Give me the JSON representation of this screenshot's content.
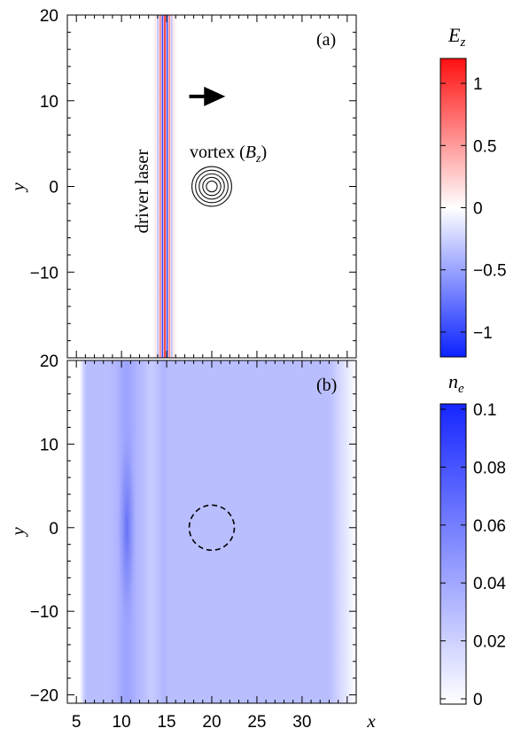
{
  "chart_data": [
    {
      "panel": "(a)",
      "type": "heatmap",
      "quantity": "E_z",
      "xlim": [
        4,
        36
      ],
      "ylim": [
        -20,
        20
      ],
      "yticks": [
        20,
        10,
        0,
        -10
      ],
      "ylabel": "y",
      "colorbar": {
        "label": "E",
        "label_sub": "z",
        "range": [
          -1.2,
          1.2
        ],
        "ticks": [
          1,
          0.5,
          0,
          -0.5,
          -1
        ],
        "tick_labels": [
          "1",
          "0.5",
          "0",
          "−0.5",
          "−1"
        ],
        "colors": [
          "#0b22ff",
          "#ffffff",
          "#ff1010"
        ]
      },
      "laser": {
        "x_center": 14.8,
        "x_half_width": 1.3,
        "carrier_period": 0.52,
        "peak": 1.2
      },
      "vortex": {
        "x": 20,
        "y": 0,
        "radii": [
          0.6,
          1.0,
          1.4,
          1.8,
          2.2
        ]
      },
      "arrow": {
        "x0": 17.5,
        "x1": 21.5,
        "y": 10.5
      },
      "annotations": {
        "panel_label": "(a)",
        "laser_label": "driver laser",
        "vortex_label_prefix": "vortex (",
        "vortex_label_var": "B",
        "vortex_label_sub": "z",
        "vortex_label_suffix": ")"
      }
    },
    {
      "panel": "(b)",
      "type": "heatmap",
      "quantity": "n_e",
      "xlim": [
        4,
        36
      ],
      "ylim": [
        -21,
        20
      ],
      "xticks": [
        5,
        10,
        15,
        20,
        25,
        30
      ],
      "yticks": [
        20,
        10,
        0,
        -10,
        -20
      ],
      "xlabel": "x",
      "ylabel": "y",
      "colorbar": {
        "label": "n",
        "label_sub": "e",
        "range": [
          0,
          0.1
        ],
        "ticks": [
          0.1,
          0.08,
          0.06,
          0.04,
          0.02,
          0
        ],
        "tick_labels": [
          "0.1",
          "0.08",
          "0.06",
          "0.04",
          "0.02",
          "0"
        ],
        "colors": [
          "#ffffff",
          "#1626ff"
        ]
      },
      "background_density": 0.03,
      "plasma_x_range": [
        6,
        35
      ],
      "density_peak": {
        "x": 10.6,
        "y": 0,
        "value": 0.056
      },
      "dashed_circle": {
        "x": 20,
        "y": 0,
        "r": 2.5
      },
      "annotations": {
        "panel_label": "(b)"
      }
    }
  ]
}
